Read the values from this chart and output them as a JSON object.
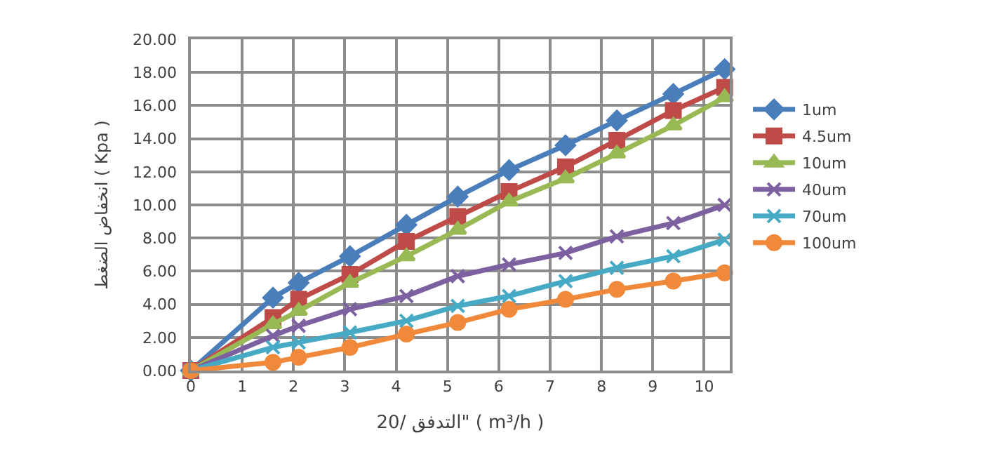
{
  "chart_data": {
    "type": "line",
    "xlabel": "التدفق /20\" ( m³/h )",
    "ylabel": "انخفاض الضغط ( Kpa )",
    "x": [
      0,
      1.6,
      2.1,
      3.1,
      4.2,
      5.2,
      6.2,
      7.3,
      8.3,
      9.4,
      10.4
    ],
    "series": [
      {
        "name": "1um",
        "color": "#4a7ebb",
        "marker": "diamond",
        "values": [
          0,
          4.4,
          5.3,
          6.9,
          8.8,
          10.5,
          12.1,
          13.6,
          15.1,
          16.7,
          18.2
        ]
      },
      {
        "name": "4.5um",
        "color": "#be4b48",
        "marker": "square",
        "values": [
          0,
          3.2,
          4.3,
          5.8,
          7.8,
          9.3,
          10.8,
          12.3,
          13.9,
          15.7,
          17.1
        ]
      },
      {
        "name": "10um",
        "color": "#98b954",
        "marker": "triangle",
        "values": [
          0,
          2.8,
          3.6,
          5.3,
          6.9,
          8.5,
          10.2,
          11.6,
          13.1,
          14.8,
          16.5
        ]
      },
      {
        "name": "40um",
        "color": "#7d60a0",
        "marker": "cross",
        "values": [
          0,
          2.1,
          2.7,
          3.7,
          4.5,
          5.7,
          6.4,
          7.1,
          8.1,
          8.9,
          10.0
        ]
      },
      {
        "name": "70um",
        "color": "#46aac5",
        "marker": "cross",
        "values": [
          0,
          1.4,
          1.7,
          2.3,
          3.0,
          3.9,
          4.5,
          5.4,
          6.2,
          6.9,
          7.9
        ]
      },
      {
        "name": "100um",
        "color": "#f08a3a",
        "marker": "circle",
        "values": [
          0,
          0.5,
          0.8,
          1.4,
          2.2,
          2.9,
          3.7,
          4.3,
          4.9,
          5.4,
          5.9
        ]
      }
    ],
    "xlim": [
      0,
      10.5
    ],
    "xticks": [
      0,
      1,
      2,
      3,
      4,
      5,
      6,
      7,
      8,
      9,
      10
    ],
    "ylim": [
      0,
      20
    ],
    "yticks": [
      {
        "value": 0,
        "label": "0.00"
      },
      {
        "value": 2,
        "label": "2.00"
      },
      {
        "value": 4,
        "label": "4.00"
      },
      {
        "value": 6,
        "label": "6.00"
      },
      {
        "value": 8,
        "label": "8.00"
      },
      {
        "value": 10,
        "label": "10.00"
      },
      {
        "value": 12,
        "label": "12.00"
      },
      {
        "value": 14,
        "label": "14.00"
      },
      {
        "value": 16,
        "label": "16.00"
      },
      {
        "value": 18,
        "label": "18.00"
      },
      {
        "value": 20,
        "label": "20.00"
      }
    ],
    "grid": true,
    "legend": "right",
    "line_style": "solid"
  }
}
